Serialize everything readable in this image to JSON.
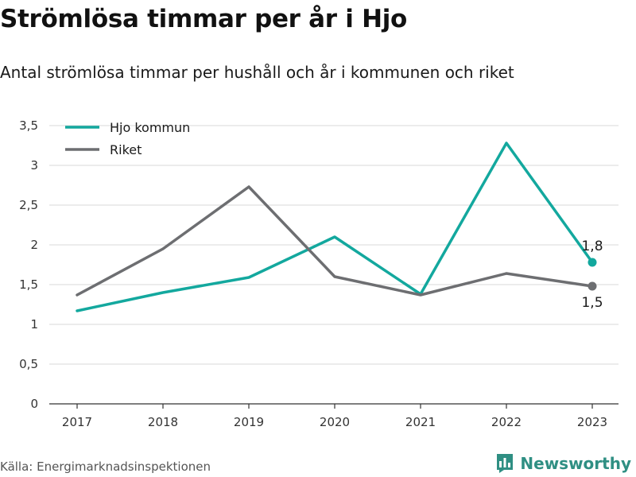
{
  "title": "Strömlösa timmar per år i Hjo",
  "subtitle": "Antal strömlösa timmar per hushåll och år i kommunen och riket",
  "source": "Källa: Energimarknadsinspektionen",
  "brand": {
    "name": "Newsworthy",
    "icon": "newsworthy-logo-icon",
    "color": "#2f8f83"
  },
  "chart_data": {
    "type": "line",
    "categories": [
      "2017",
      "2018",
      "2019",
      "2020",
      "2021",
      "2022",
      "2023"
    ],
    "series": [
      {
        "name": "Hjo kommun",
        "color": "#13a89e",
        "values": [
          1.17,
          1.4,
          1.59,
          2.1,
          1.38,
          3.28,
          1.78
        ],
        "end_label": "1,8"
      },
      {
        "name": "Riket",
        "color": "#6d6e71",
        "values": [
          1.37,
          1.95,
          2.73,
          1.6,
          1.37,
          1.64,
          1.48
        ],
        "end_label": "1,5"
      }
    ],
    "ylim": [
      0,
      3.5
    ],
    "yticks": [
      0,
      0.5,
      1,
      1.5,
      2,
      2.5,
      3,
      3.5
    ],
    "ytick_labels": [
      "0",
      "0,5",
      "1",
      "1,5",
      "2",
      "2,5",
      "3",
      "3,5"
    ],
    "grid": true,
    "legend": "top-left"
  }
}
